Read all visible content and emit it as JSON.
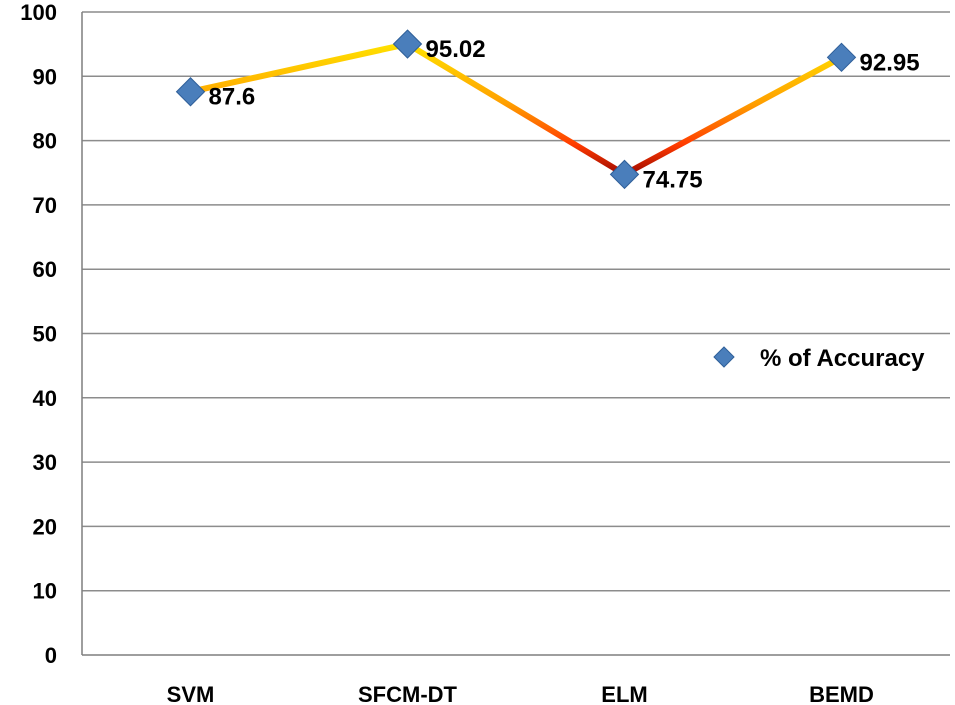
{
  "chart_data": {
    "type": "line",
    "title": "",
    "xlabel": "",
    "ylabel": "",
    "categories": [
      "SVM",
      "SFCM-DT",
      "ELM",
      "BEMD"
    ],
    "series": [
      {
        "name": "% of Accuracy",
        "values": [
          87.6,
          95.02,
          74.75,
          92.95
        ],
        "labels": [
          "87.6",
          "95.02",
          "74.75",
          "92.95"
        ]
      }
    ],
    "ylim": [
      0,
      100
    ],
    "yticks": [
      0,
      10,
      20,
      30,
      40,
      50,
      60,
      70,
      80,
      90,
      100
    ],
    "grid": true,
    "legend_position": "right",
    "colors": {
      "marker": "#4a7ebb",
      "marker_stroke": "#2f5f99",
      "line_low": "#8b0000",
      "line_mid": "#ff3a00",
      "line_high": "#ffe600",
      "grid": "#8c8c8c",
      "axis": "#7f7f7f"
    }
  }
}
